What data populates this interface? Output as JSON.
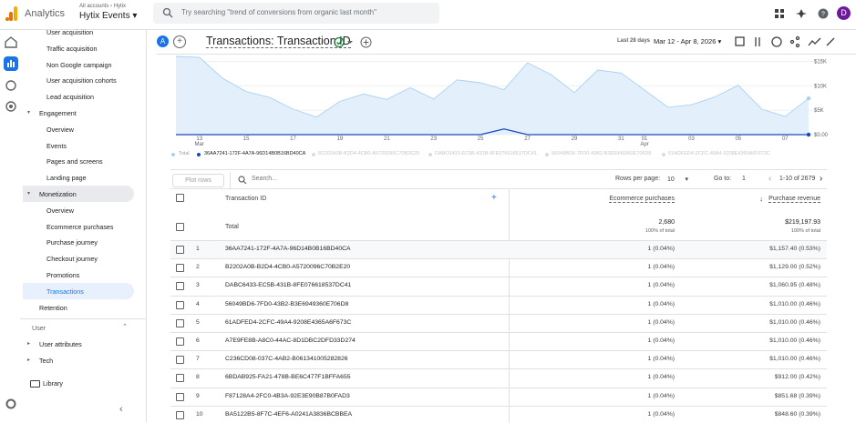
{
  "topbar": {
    "product": "Analytics",
    "breadcrumb": [
      "All accounts",
      "›",
      "Hytix"
    ],
    "property": "Hytix Events",
    "search_placeholder": "Try searching \"trend of conversions from organic last month\"",
    "avatar": "D"
  },
  "nav": {
    "acquisition": [
      "User acquisition",
      "Traffic acquisition",
      "Non Google campaign",
      "User acquisition cohorts",
      "Lead acquisition"
    ],
    "engagement": {
      "label": "Engagement",
      "items": [
        "Overview",
        "Events",
        "Pages and screens",
        "Landing page"
      ]
    },
    "monetization": {
      "label": "Monetization",
      "items": [
        "Overview",
        "Ecommerce purchases",
        "Purchase journey",
        "Checkout journey",
        "Promotions",
        "Transactions"
      ],
      "active": 5
    },
    "retention": "Retention",
    "user": {
      "label": "User",
      "items": [
        "User attributes",
        "Tech"
      ]
    },
    "library": "Library"
  },
  "report": {
    "segment": "A",
    "title": "Transactions: Transaction ID",
    "range_name": "Last 28 days",
    "range": "Mar 12 - Apr 8, 2026"
  },
  "chart_data": {
    "type": "area",
    "categories": [
      null,
      "13",
      null,
      "15",
      null,
      "17",
      null,
      "19",
      null,
      "21",
      null,
      "23",
      null,
      "25",
      null,
      "27",
      null,
      "29",
      null,
      "31",
      "01",
      null,
      "03",
      null,
      "05",
      null,
      "07",
      null
    ],
    "month_labels": [
      {
        "index": 1,
        "label": "Mar"
      },
      {
        "index": 20,
        "label": "Apr"
      }
    ],
    "ylim": [
      0,
      16000
    ],
    "yticks": [
      {
        "value": 0,
        "label": "$0.00"
      },
      {
        "value": 5000,
        "label": "$5K"
      },
      {
        "value": 10000,
        "label": "$10K"
      },
      {
        "value": 15000,
        "label": "$15K"
      }
    ],
    "grid": true,
    "series": [
      {
        "name": "Total",
        "color": "#a8d1f2",
        "values": [
          16000,
          15800,
          11500,
          8800,
          7600,
          5200,
          3600,
          6800,
          8300,
          7200,
          9600,
          7300,
          11200,
          10600,
          9200,
          14700,
          12300,
          8600,
          13200,
          12600,
          9100,
          5600,
          6100,
          7700,
          10100,
          5200,
          3700,
          7400
        ]
      },
      {
        "name": "36AA7241-172F-4A7A-96D14B0B16BD40CA",
        "color": "#1a47b8",
        "values": [
          0,
          0,
          0,
          0,
          0,
          0,
          0,
          0,
          0,
          0,
          0,
          0,
          0,
          0,
          1157.4,
          0,
          0,
          0,
          0,
          0,
          0,
          0,
          0,
          0,
          0,
          0,
          0,
          0
        ]
      }
    ],
    "legend_inactive": [
      "B2202A0B-B2D4-4CB0-A5720096C70B2E20",
      "DABC6433-EC5B-431B-8FE076618537DC41",
      "56049BD6-7FD0-43B2-B3E6949360E706D8",
      "61ADFED4-2CFC-49A4-9208E4365A6F673C"
    ]
  },
  "table": {
    "plot_rows": "Plot rows",
    "search": "Search...",
    "rows_per_page_label": "Rows per page:",
    "rows_per_page": "10",
    "goto_label": "Go to:",
    "goto": "1",
    "page_info": "1-10 of 2679",
    "columns": [
      "Transaction ID",
      "Ecommerce purchases",
      "Purchase revenue"
    ],
    "total": {
      "label": "Total",
      "purchases": "2,680",
      "purchases_pct": "100% of total",
      "revenue": "$219,197.93",
      "revenue_pct": "100% of total"
    },
    "rows": [
      [
        "1",
        "36AA7241-172F-4A7A-96D14B0B16BD40CA",
        "1 (0.04%)",
        "$1,157.40 (0.53%)"
      ],
      [
        "2",
        "B2202A0B-B2D4-4CB0-A5720096C70B2E20",
        "1 (0.04%)",
        "$1,129.00 (0.52%)"
      ],
      [
        "3",
        "DABC6433-EC5B-431B-8FE076618537DC41",
        "1 (0.04%)",
        "$1,060.95 (0.48%)"
      ],
      [
        "4",
        "56049BD6-7FD0-43B2-B3E6949360E706D8",
        "1 (0.04%)",
        "$1,010.00 (0.46%)"
      ],
      [
        "5",
        "61ADFED4-2CFC-49A4-9208E4365A6F673C",
        "1 (0.04%)",
        "$1,010.00 (0.46%)"
      ],
      [
        "6",
        "A7E9FE8B-A8C0-44AC-8D1DBC2DFD33D274",
        "1 (0.04%)",
        "$1,010.00 (0.46%)"
      ],
      [
        "7",
        "C236CD08-037C-4AB2-B061341005282826",
        "1 (0.04%)",
        "$1,010.00 (0.46%)"
      ],
      [
        "8",
        "6BDAB925-FA21-478B-BE6C477F1BFFA655",
        "1 (0.04%)",
        "$912.00 (0.42%)"
      ],
      [
        "9",
        "F87128A4-2FC0-4B3A-92E3E90B87B0FAD3",
        "1 (0.04%)",
        "$851.68 (0.39%)"
      ],
      [
        "10",
        "BA5122B5-8F7C-4EF6-A0241A3836BCBBEA",
        "1 (0.04%)",
        "$848.60 (0.39%)"
      ]
    ]
  }
}
